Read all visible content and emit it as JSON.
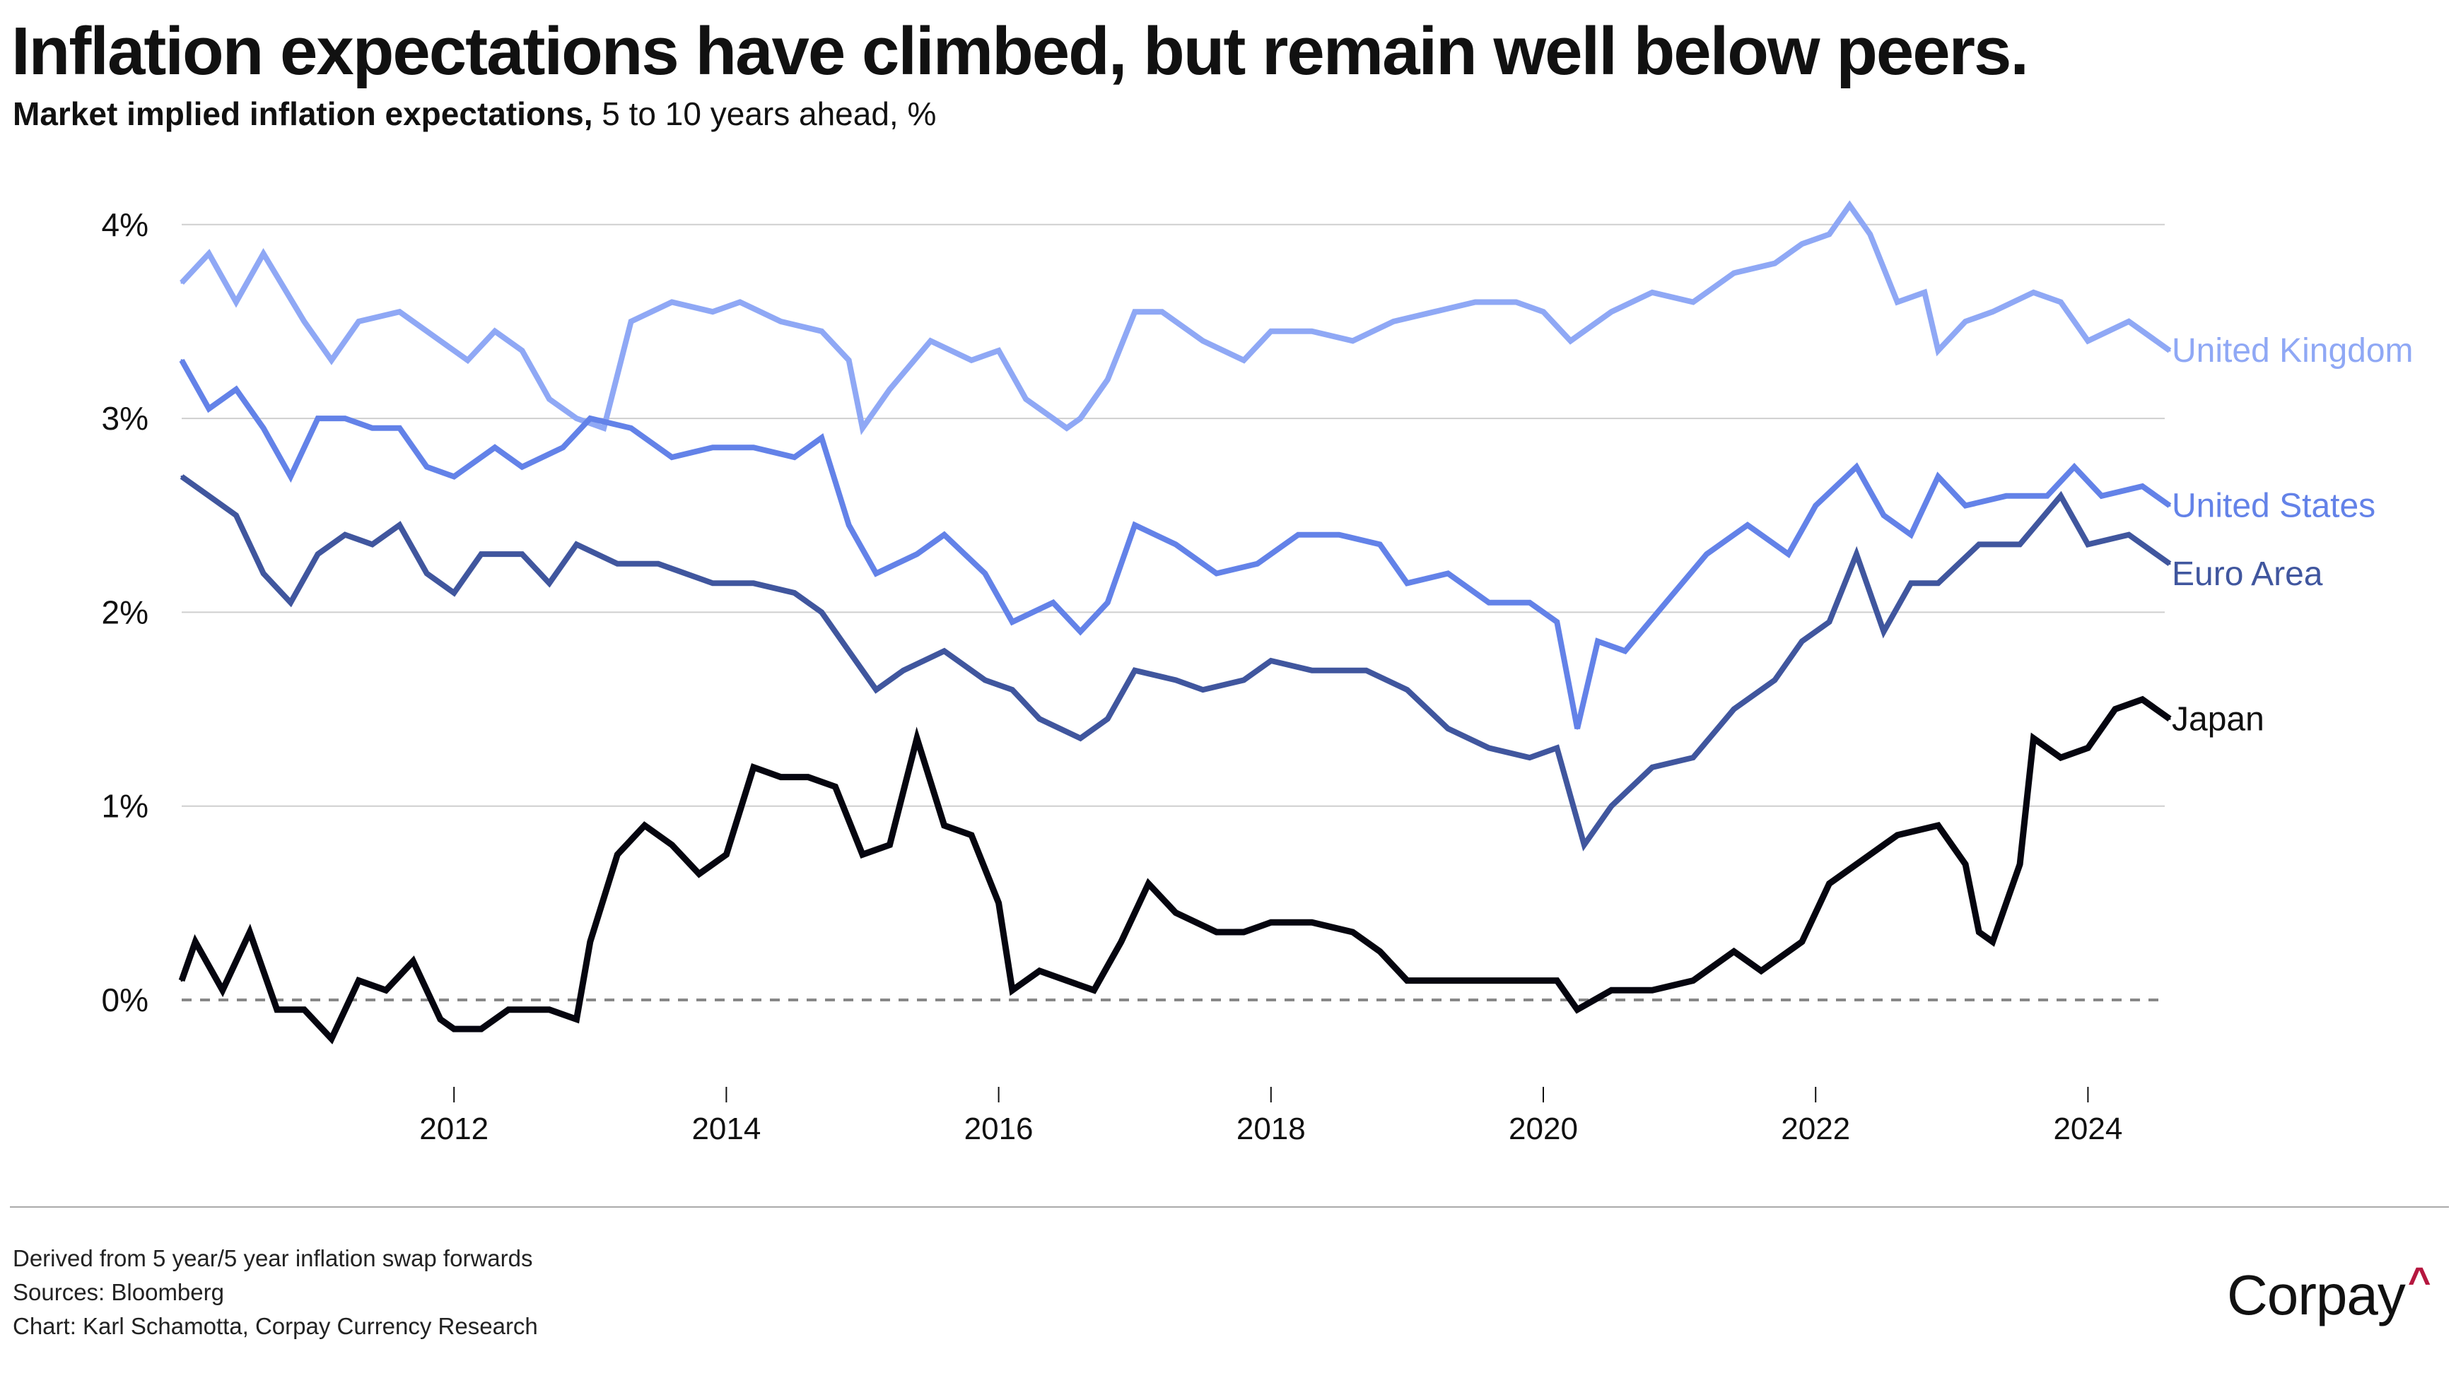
{
  "header": {
    "title": "Inflation expectations have climbed, but remain well below peers.",
    "subtitle_bold": "Market implied inflation expectations,",
    "subtitle_rest": " 5 to 10 years ahead, %"
  },
  "footer": {
    "note": "Derived from 5 year/5 year inflation swap forwards",
    "sources": "Sources: Bloomberg",
    "credit": "Chart: Karl Schamotta, Corpay Currency Research",
    "logo_text": "Corpay",
    "logo_mark": "^"
  },
  "colors": {
    "uk": "#8fa8f5",
    "us": "#6382e8",
    "euro": "#40569e",
    "japan": "#05050f",
    "logo_accent": "#b5173f"
  },
  "chart_data": {
    "type": "line",
    "title": "Inflation expectations have climbed, but remain well below peers.",
    "subtitle": "Market implied inflation expectations, 5 to 10 years ahead, %",
    "xlabel": "",
    "ylabel": "",
    "xlim": [
      2010.0,
      2024.6
    ],
    "ylim": [
      -0.4,
      4.2
    ],
    "x_ticks": [
      2012,
      2014,
      2016,
      2018,
      2020,
      2022,
      2024
    ],
    "x_tick_labels": [
      "2012",
      "2014",
      "2016",
      "2018",
      "2020",
      "2022",
      "2024"
    ],
    "y_ticks": [
      0,
      1,
      2,
      3,
      4
    ],
    "y_tick_labels": [
      "0%",
      "1%",
      "2%",
      "3%",
      "4%"
    ],
    "grid": true,
    "zero_line": "dashed",
    "legend": "direct labels at right end of lines",
    "series": [
      {
        "name": "United Kingdom",
        "key": "uk",
        "x": [
          2010.0,
          2010.2,
          2010.4,
          2010.6,
          2010.9,
          2011.1,
          2011.3,
          2011.6,
          2011.9,
          2012.1,
          2012.3,
          2012.5,
          2012.7,
          2012.9,
          2013.1,
          2013.3,
          2013.6,
          2013.9,
          2014.1,
          2014.4,
          2014.7,
          2014.9,
          2015.0,
          2015.2,
          2015.5,
          2015.8,
          2016.0,
          2016.2,
          2016.5,
          2016.6,
          2016.8,
          2017.0,
          2017.2,
          2017.5,
          2017.8,
          2018.0,
          2018.3,
          2018.6,
          2018.9,
          2019.2,
          2019.5,
          2019.8,
          2020.0,
          2020.2,
          2020.5,
          2020.8,
          2021.1,
          2021.4,
          2021.7,
          2021.9,
          2022.1,
          2022.25,
          2022.4,
          2022.6,
          2022.8,
          2022.9,
          2023.1,
          2023.3,
          2023.6,
          2023.8,
          2024.0,
          2024.3,
          2024.6
        ],
        "y": [
          3.7,
          3.85,
          3.6,
          3.85,
          3.5,
          3.3,
          3.5,
          3.55,
          3.4,
          3.3,
          3.45,
          3.35,
          3.1,
          3.0,
          2.95,
          3.5,
          3.6,
          3.55,
          3.6,
          3.5,
          3.45,
          3.3,
          2.95,
          3.15,
          3.4,
          3.3,
          3.35,
          3.1,
          2.95,
          3.0,
          3.2,
          3.55,
          3.55,
          3.4,
          3.3,
          3.45,
          3.45,
          3.4,
          3.5,
          3.55,
          3.6,
          3.6,
          3.55,
          3.4,
          3.55,
          3.65,
          3.6,
          3.75,
          3.8,
          3.9,
          3.95,
          4.1,
          3.95,
          3.6,
          3.65,
          3.35,
          3.5,
          3.55,
          3.65,
          3.6,
          3.4,
          3.5,
          3.35
        ]
      },
      {
        "name": "United States",
        "key": "us",
        "x": [
          2010.0,
          2010.2,
          2010.4,
          2010.6,
          2010.8,
          2011.0,
          2011.2,
          2011.4,
          2011.6,
          2011.8,
          2012.0,
          2012.3,
          2012.5,
          2012.8,
          2013.0,
          2013.3,
          2013.6,
          2013.9,
          2014.2,
          2014.5,
          2014.7,
          2014.9,
          2015.1,
          2015.4,
          2015.6,
          2015.9,
          2016.1,
          2016.4,
          2016.6,
          2016.8,
          2017.0,
          2017.3,
          2017.6,
          2017.9,
          2018.2,
          2018.5,
          2018.8,
          2019.0,
          2019.3,
          2019.6,
          2019.9,
          2020.1,
          2020.25,
          2020.4,
          2020.6,
          2020.9,
          2021.2,
          2021.5,
          2021.8,
          2022.0,
          2022.3,
          2022.5,
          2022.7,
          2022.9,
          2023.1,
          2023.4,
          2023.7,
          2023.9,
          2024.1,
          2024.4,
          2024.6
        ],
        "y": [
          3.3,
          3.05,
          3.15,
          2.95,
          2.7,
          3.0,
          3.0,
          2.95,
          2.95,
          2.75,
          2.7,
          2.85,
          2.75,
          2.85,
          3.0,
          2.95,
          2.8,
          2.85,
          2.85,
          2.8,
          2.9,
          2.45,
          2.2,
          2.3,
          2.4,
          2.2,
          1.95,
          2.05,
          1.9,
          2.05,
          2.45,
          2.35,
          2.2,
          2.25,
          2.4,
          2.4,
          2.35,
          2.15,
          2.2,
          2.05,
          2.05,
          1.95,
          1.4,
          1.85,
          1.8,
          2.05,
          2.3,
          2.45,
          2.3,
          2.55,
          2.75,
          2.5,
          2.4,
          2.7,
          2.55,
          2.6,
          2.6,
          2.75,
          2.6,
          2.65,
          2.55
        ]
      },
      {
        "name": "Euro Area",
        "key": "euro",
        "x": [
          2010.0,
          2010.2,
          2010.4,
          2010.6,
          2010.8,
          2011.0,
          2011.2,
          2011.4,
          2011.6,
          2011.8,
          2012.0,
          2012.2,
          2012.5,
          2012.7,
          2012.9,
          2013.2,
          2013.5,
          2013.9,
          2014.2,
          2014.5,
          2014.7,
          2014.9,
          2015.1,
          2015.3,
          2015.6,
          2015.9,
          2016.1,
          2016.3,
          2016.6,
          2016.8,
          2017.0,
          2017.3,
          2017.5,
          2017.8,
          2018.0,
          2018.3,
          2018.7,
          2019.0,
          2019.3,
          2019.6,
          2019.9,
          2020.1,
          2020.3,
          2020.5,
          2020.8,
          2021.1,
          2021.4,
          2021.7,
          2021.9,
          2022.1,
          2022.3,
          2022.5,
          2022.7,
          2022.9,
          2023.2,
          2023.5,
          2023.8,
          2024.0,
          2024.3,
          2024.6
        ],
        "y": [
          2.7,
          2.6,
          2.5,
          2.2,
          2.05,
          2.3,
          2.4,
          2.35,
          2.45,
          2.2,
          2.1,
          2.3,
          2.3,
          2.15,
          2.35,
          2.25,
          2.25,
          2.15,
          2.15,
          2.1,
          2.0,
          1.8,
          1.6,
          1.7,
          1.8,
          1.65,
          1.6,
          1.45,
          1.35,
          1.45,
          1.7,
          1.65,
          1.6,
          1.65,
          1.75,
          1.7,
          1.7,
          1.6,
          1.4,
          1.3,
          1.25,
          1.3,
          0.8,
          1.0,
          1.2,
          1.25,
          1.5,
          1.65,
          1.85,
          1.95,
          2.3,
          1.9,
          2.15,
          2.15,
          2.35,
          2.35,
          2.6,
          2.35,
          2.4,
          2.25
        ]
      },
      {
        "name": "Japan",
        "key": "japan",
        "x": [
          2010.0,
          2010.1,
          2010.3,
          2010.5,
          2010.7,
          2010.9,
          2011.1,
          2011.3,
          2011.5,
          2011.7,
          2011.9,
          2012.0,
          2012.2,
          2012.4,
          2012.7,
          2012.9,
          2013.0,
          2013.2,
          2013.4,
          2013.6,
          2013.8,
          2014.0,
          2014.2,
          2014.4,
          2014.6,
          2014.8,
          2015.0,
          2015.2,
          2015.4,
          2015.6,
          2015.8,
          2016.0,
          2016.1,
          2016.3,
          2016.5,
          2016.7,
          2016.9,
          2017.1,
          2017.3,
          2017.6,
          2017.8,
          2018.0,
          2018.3,
          2018.6,
          2018.8,
          2019.0,
          2019.4,
          2019.8,
          2020.1,
          2020.25,
          2020.5,
          2020.8,
          2021.1,
          2021.4,
          2021.6,
          2021.9,
          2022.1,
          2022.4,
          2022.6,
          2022.9,
          2023.1,
          2023.2,
          2023.3,
          2023.5,
          2023.6,
          2023.8,
          2024.0,
          2024.2,
          2024.4,
          2024.6
        ],
        "y": [
          0.1,
          0.3,
          0.05,
          0.35,
          -0.05,
          -0.05,
          -0.2,
          0.1,
          0.05,
          0.2,
          -0.1,
          -0.15,
          -0.15,
          -0.05,
          -0.05,
          -0.1,
          0.3,
          0.75,
          0.9,
          0.8,
          0.65,
          0.75,
          1.2,
          1.15,
          1.15,
          1.1,
          0.75,
          0.8,
          1.35,
          0.9,
          0.85,
          0.5,
          0.05,
          0.15,
          0.1,
          0.05,
          0.3,
          0.6,
          0.45,
          0.35,
          0.35,
          0.4,
          0.4,
          0.35,
          0.25,
          0.1,
          0.1,
          0.1,
          0.1,
          -0.05,
          0.05,
          0.05,
          0.1,
          0.25,
          0.15,
          0.3,
          0.6,
          0.75,
          0.85,
          0.9,
          0.7,
          0.35,
          0.3,
          0.7,
          1.35,
          1.25,
          1.3,
          1.5,
          1.55,
          1.45
        ]
      }
    ]
  }
}
